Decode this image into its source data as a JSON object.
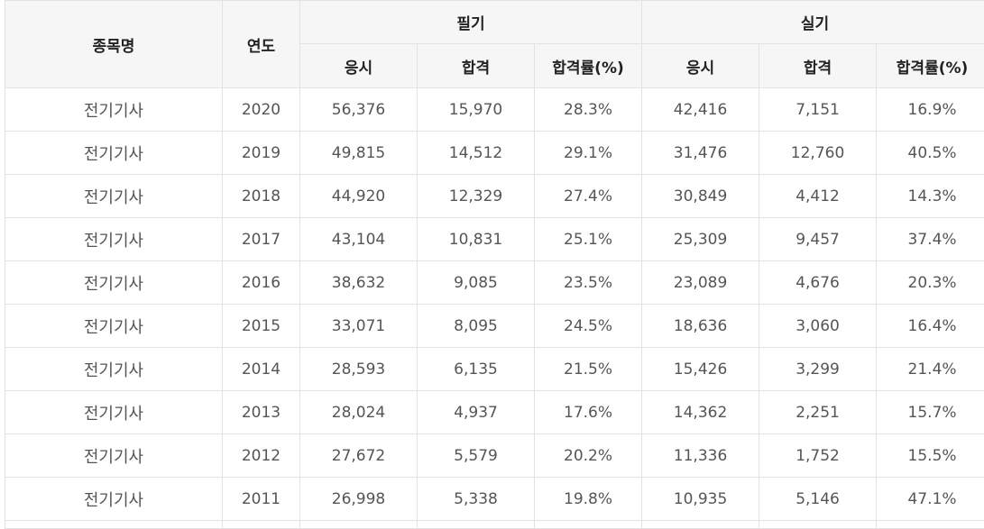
{
  "table": {
    "headers": {
      "item": "종목명",
      "year": "연도",
      "written": "필기",
      "practical": "실기",
      "apply": "응시",
      "pass": "합격",
      "rate": "합격률(%)"
    },
    "rows": [
      {
        "name": "전기기사",
        "year": "2020",
        "w_apply": "56,376",
        "w_pass": "15,970",
        "w_rate": "28.3%",
        "p_apply": "42,416",
        "p_pass": "7,151",
        "p_rate": "16.9%"
      },
      {
        "name": "전기기사",
        "year": "2019",
        "w_apply": "49,815",
        "w_pass": "14,512",
        "w_rate": "29.1%",
        "p_apply": "31,476",
        "p_pass": "12,760",
        "p_rate": "40.5%"
      },
      {
        "name": "전기기사",
        "year": "2018",
        "w_apply": "44,920",
        "w_pass": "12,329",
        "w_rate": "27.4%",
        "p_apply": "30,849",
        "p_pass": "4,412",
        "p_rate": "14.3%"
      },
      {
        "name": "전기기사",
        "year": "2017",
        "w_apply": "43,104",
        "w_pass": "10,831",
        "w_rate": "25.1%",
        "p_apply": "25,309",
        "p_pass": "9,457",
        "p_rate": "37.4%"
      },
      {
        "name": "전기기사",
        "year": "2016",
        "w_apply": "38,632",
        "w_pass": "9,085",
        "w_rate": "23.5%",
        "p_apply": "23,089",
        "p_pass": "4,676",
        "p_rate": "20.3%"
      },
      {
        "name": "전기기사",
        "year": "2015",
        "w_apply": "33,071",
        "w_pass": "8,095",
        "w_rate": "24.5%",
        "p_apply": "18,636",
        "p_pass": "3,060",
        "p_rate": "16.4%"
      },
      {
        "name": "전기기사",
        "year": "2014",
        "w_apply": "28,593",
        "w_pass": "6,135",
        "w_rate": "21.5%",
        "p_apply": "15,426",
        "p_pass": "3,299",
        "p_rate": "21.4%"
      },
      {
        "name": "전기기사",
        "year": "2013",
        "w_apply": "28,024",
        "w_pass": "4,937",
        "w_rate": "17.6%",
        "p_apply": "14,362",
        "p_pass": "2,251",
        "p_rate": "15.7%"
      },
      {
        "name": "전기기사",
        "year": "2012",
        "w_apply": "27,672",
        "w_pass": "5,579",
        "w_rate": "20.2%",
        "p_apply": "11,336",
        "p_pass": "1,752",
        "p_rate": "15.5%"
      },
      {
        "name": "전기기사",
        "year": "2011",
        "w_apply": "26,998",
        "w_pass": "5,338",
        "w_rate": "19.8%",
        "p_apply": "10,935",
        "p_pass": "5,146",
        "p_rate": "47.1%"
      }
    ]
  },
  "colors": {
    "header_bg": "#f6f6f6",
    "border": "#e2e2e2",
    "header_text": "#222222",
    "cell_text": "#555555"
  }
}
